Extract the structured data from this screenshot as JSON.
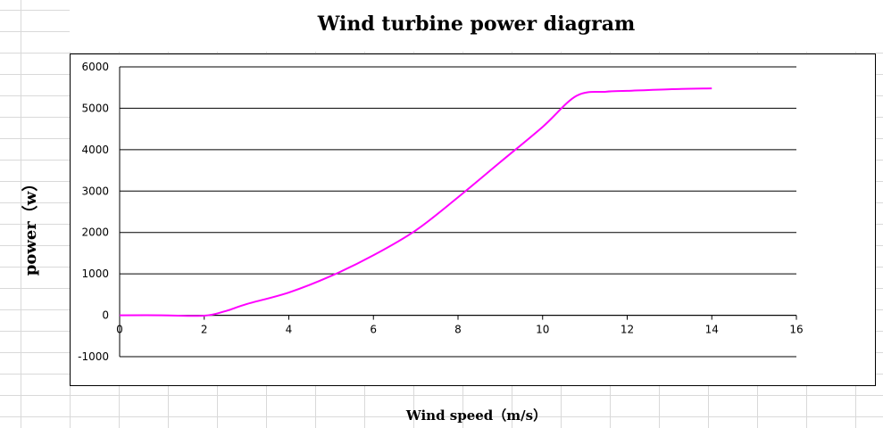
{
  "chart_data": {
    "type": "line",
    "title": "Wind turbine power diagram",
    "xlabel": "Wind speed（m/s）",
    "ylabel": "power（w）",
    "xlim": [
      0,
      16
    ],
    "ylim": [
      -1000,
      6000
    ],
    "x_ticks": [
      "0",
      "2",
      "4",
      "6",
      "8",
      "10",
      "12",
      "14",
      "16"
    ],
    "y_ticks": [
      "-1000",
      "0",
      "1000",
      "2000",
      "3000",
      "4000",
      "5000",
      "6000"
    ],
    "grid": true,
    "legend": "none",
    "series": [
      {
        "color": "#ff00ff",
        "x": [
          0,
          1,
          2,
          2.5,
          3,
          4,
          5,
          6,
          7,
          8,
          9,
          10,
          10.8,
          11.5,
          12,
          13,
          14
        ],
        "y": [
          0,
          0,
          -10,
          100,
          270,
          550,
          950,
          1450,
          2050,
          2850,
          3700,
          4550,
          5300,
          5400,
          5420,
          5460,
          5480
        ]
      }
    ]
  }
}
